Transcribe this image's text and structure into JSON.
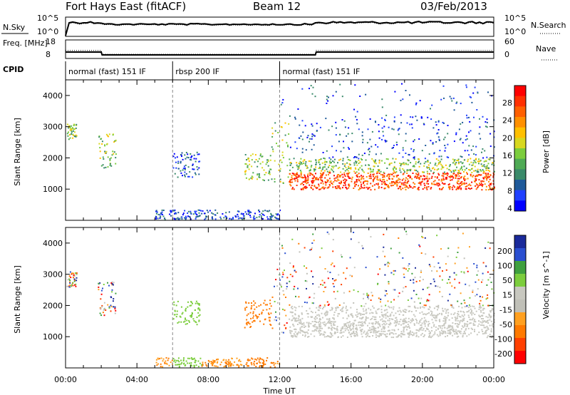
{
  "header": {
    "station_title": "Fort Hays East (fitACF)",
    "beam": "Beam 12",
    "date": "03/Feb/2013"
  },
  "colors": {
    "power_scale": [
      "#0000ff",
      "#2040ff",
      "#1f5a9a",
      "#3a8a6a",
      "#4faa55",
      "#7ccd3d",
      "#d8d820",
      "#ffc000",
      "#ff9000",
      "#ff6000",
      "#ff3000",
      "#ff0000"
    ],
    "velocity_scale": [
      "#1a2a9a",
      "#2a4fd0",
      "#3fa03f",
      "#7ccd3d",
      "#c8c8c0",
      "#c0c0b8",
      "#ffa020",
      "#ff7a00",
      "#ff4000",
      "#ff0000"
    ]
  },
  "chart_data": [
    {
      "type": "line",
      "name": "noise",
      "ylabel_left": "N.Sky",
      "ylabel_right": "N.Search",
      "yticks_left": [
        "10^5",
        "10^0"
      ],
      "yticks_right": [
        "10^5",
        "10^0"
      ],
      "legend_right_style": "dotted"
    },
    {
      "type": "line",
      "name": "frequency-nave",
      "ylabel_left": "Freq. [MHz]",
      "yticks_left": [
        "18",
        "8"
      ],
      "ylabel_right": "Nave",
      "yticks_right": [
        "60",
        "0"
      ],
      "legend_right_style": "dotted",
      "freq_steps": [
        [
          0,
          12.5
        ],
        [
          2,
          12.5
        ],
        [
          2.05,
          10.5
        ],
        [
          14,
          10.5
        ],
        [
          14.05,
          12.5
        ],
        [
          24,
          12.5
        ]
      ],
      "nave_steps": [
        [
          0,
          28
        ],
        [
          2,
          28
        ],
        [
          2.05,
          12
        ],
        [
          14,
          12
        ],
        [
          14.05,
          28
        ],
        [
          24,
          28
        ]
      ],
      "cpid_label": "CPID",
      "cpid_segments": [
        {
          "start": 0,
          "end": 6,
          "label": "normal (fast) 151 IF"
        },
        {
          "start": 6,
          "end": 12,
          "label": "rbsp 200 IF"
        },
        {
          "start": 12,
          "end": 24,
          "label": "normal (fast) 151 IF"
        }
      ]
    },
    {
      "type": "heatmap",
      "name": "power",
      "ylabel": "Slant Range [km]",
      "ylim": [
        0,
        4500
      ],
      "yticks": [
        1000,
        2000,
        3000,
        4000
      ],
      "colorbar_label": "Power [dB]",
      "colorbar_ticks": [
        "28",
        "24",
        "20",
        "16",
        "12",
        "8",
        "4"
      ]
    },
    {
      "type": "heatmap",
      "name": "velocity",
      "ylabel": "Slant Range [km]",
      "ylim": [
        0,
        4500
      ],
      "yticks": [
        1000,
        2000,
        3000,
        4000
      ],
      "colorbar_label": "Velocity [m s^-1]",
      "colorbar_ticks": [
        "200",
        "100",
        "50",
        "15",
        "-15",
        "-50",
        "-100",
        "-200"
      ]
    }
  ],
  "x_axis": {
    "xlim": [
      0,
      24
    ],
    "ticks": [
      "00:00",
      "04:00",
      "08:00",
      "12:00",
      "16:00",
      "20:00",
      "00:00"
    ],
    "xlabel": "Time UT"
  }
}
